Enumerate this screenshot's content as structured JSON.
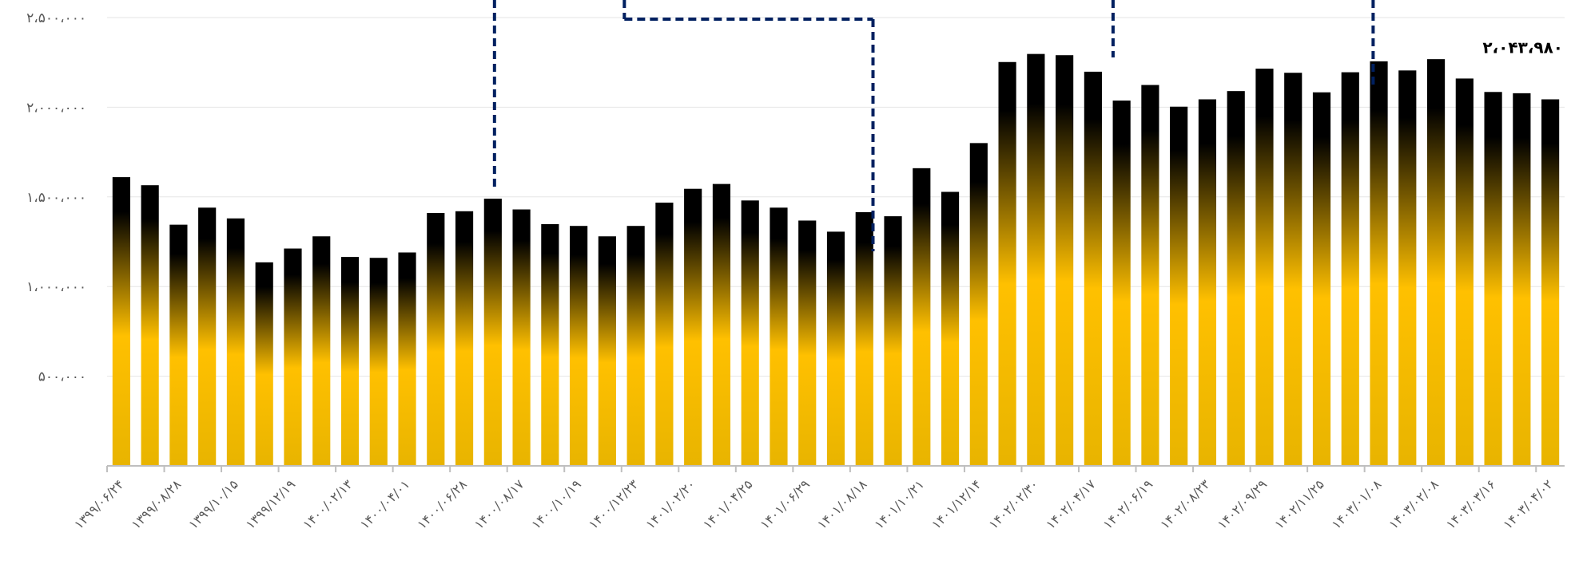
{
  "chart_data": {
    "type": "bar",
    "title": "",
    "xlabel": "",
    "ylabel": "",
    "ylim": [
      0,
      2500000
    ],
    "y_ticks": [
      {
        "value": 500000,
        "label": "۵۰۰،۰۰۰"
      },
      {
        "value": 1000000,
        "label": "۱،۰۰۰،۰۰۰"
      },
      {
        "value": 1500000,
        "label": "۱،۵۰۰،۰۰۰"
      },
      {
        "value": 2000000,
        "label": "۲،۰۰۰،۰۰۰"
      },
      {
        "value": 2500000,
        "label": "۲،۵۰۰،۰۰۰"
      }
    ],
    "grid": true,
    "legend": "none",
    "categories": [
      "۱۳۹۹/۰۶/۲۴",
      "",
      "۱۳۹۹/۰۸/۲۸",
      "",
      "۱۳۹۹/۱۰/۱۵",
      "",
      "۱۳۹۹/۱۲/۱۹",
      "",
      "۱۴۰۰/۰۲/۱۳",
      "",
      "۱۴۰۰/۰۴/۰۱",
      "",
      "۱۴۰۰/۰۶/۲۸",
      "",
      "۱۴۰۰/۰۸/۱۷",
      "",
      "۱۴۰۰/۱۰/۱۹",
      "",
      "۱۴۰۰/۱۲/۲۳",
      "",
      "۱۴۰۱/۰۲/۲۰",
      "",
      "۱۴۰۱/۰۴/۲۵",
      "",
      "۱۴۰۱/۰۶/۲۹",
      "",
      "۱۴۰۱/۰۸/۱۸",
      "",
      "۱۴۰۱/۱۰/۲۱",
      "",
      "۱۴۰۱/۱۲/۱۴",
      "",
      "۱۴۰۲/۰۲/۳۰",
      "",
      "۱۴۰۲/۰۴/۱۷",
      "",
      "۱۴۰۲/۰۶/۱۹",
      "",
      "۱۴۰۲/۰۸/۲۳",
      "",
      "۱۴۰۲/۰۹/۲۹",
      "",
      "۱۴۰۲/۱۱/۲۵",
      "",
      "۱۴۰۳/۰۱/۰۸",
      "",
      "۱۴۰۳/۰۲/۰۸",
      "",
      "۱۴۰۳/۰۳/۱۶",
      "",
      "۱۴۰۳/۰۴/۰۲"
    ],
    "values": [
      1610000,
      1565000,
      1345000,
      1440000,
      1380000,
      1135000,
      1212000,
      1280000,
      1165000,
      1160000,
      1190000,
      1410000,
      1420000,
      1490000,
      1430000,
      1348000,
      1338000,
      1280000,
      1338000,
      1468000,
      1545000,
      1572000,
      1480000,
      1440000,
      1368000,
      1306000,
      1415000,
      1392000,
      1660000,
      1528000,
      1800000,
      2252000,
      2297000,
      2290000,
      2198000,
      2037000,
      2124000,
      2003000,
      2044000,
      2090000,
      2215000,
      2192000,
      2083000,
      2195000,
      2256000,
      2205000,
      2268000,
      2160000,
      2085000,
      2078000,
      2043980
    ],
    "data_labels": [
      {
        "index": 50,
        "text": "۲،۰۴۳،۹۸۰"
      }
    ],
    "bar_gradient": {
      "top": "#000000",
      "middle": "#ffc000",
      "bottom": "#e8b400"
    },
    "annotation_color": "#002060"
  }
}
